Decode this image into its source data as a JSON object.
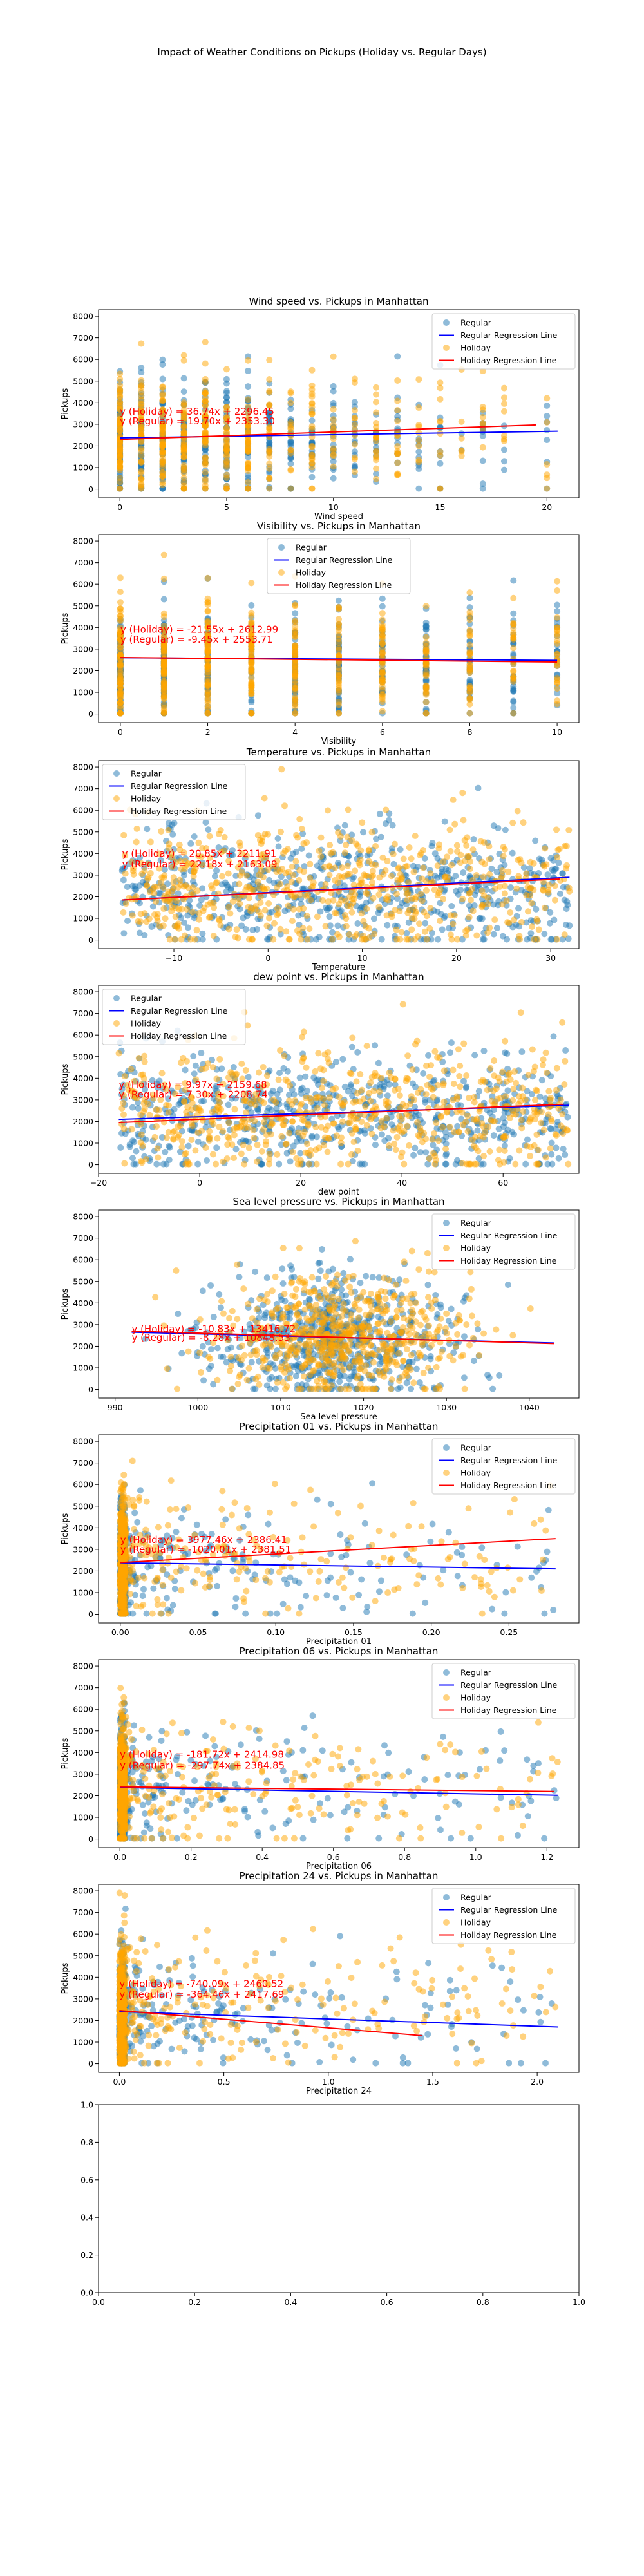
{
  "figure": {
    "suptitle": "Impact of Weather Conditions on Pickups (Holiday vs. Regular Days)",
    "colors": {
      "regular": "#1f77b4",
      "holiday": "#ffa500",
      "regular_line": "#0000ff",
      "holiday_line": "#ff0000",
      "equation": "#ff0000"
    }
  },
  "chart_data": [
    {
      "type": "scatter",
      "title": "Wind speed vs. Pickups in Manhattan",
      "xlabel": "Wind speed",
      "ylabel": "Pickups",
      "xlim": [
        -1,
        21.5
      ],
      "ylim": [
        -400,
        8300
      ],
      "xticks": [
        0,
        5,
        10,
        15,
        20
      ],
      "yticks": [
        0,
        1000,
        2000,
        3000,
        4000,
        5000,
        6000,
        7000,
        8000
      ],
      "legend": "upper right",
      "legend_entries": [
        "Regular",
        "Regular Regression Line",
        "Holiday",
        "Holiday Regression Line"
      ],
      "point_pattern": "discrete",
      "x_discrete": [
        0,
        1,
        2,
        3,
        4,
        5,
        6,
        7,
        8,
        9,
        10,
        11,
        12,
        13,
        14,
        15,
        16,
        17,
        18,
        20
      ],
      "x_range": [
        0,
        20.5
      ],
      "regular_line": {
        "x": [
          0,
          20.5
        ],
        "y": [
          2370,
          2680
        ]
      },
      "holiday_line": {
        "x": [
          0,
          19.5
        ],
        "y": [
          2300,
          2970
        ]
      },
      "equations": [
        "y (Holiday) = 36.74x + 2296.45",
        "y (Regular) = 19.70x + 2353.30"
      ],
      "eq_x": 0,
      "eq_y": [
        3450,
        3000
      ]
    },
    {
      "type": "scatter",
      "title": "Visibility vs. Pickups in Manhattan",
      "xlabel": "Visibility",
      "ylabel": "Pickups",
      "xlim": [
        -0.5,
        10.5
      ],
      "ylim": [
        -400,
        8300
      ],
      "xticks": [
        0,
        2,
        4,
        6,
        8,
        10
      ],
      "yticks": [
        0,
        1000,
        2000,
        3000,
        4000,
        5000,
        6000,
        7000,
        8000
      ],
      "legend": "upper center",
      "legend_entries": [
        "Regular",
        "Regular Regression Line",
        "Holiday",
        "Holiday Regression Line"
      ],
      "point_pattern": "discrete",
      "x_discrete": [
        0,
        1,
        2,
        3,
        4,
        5,
        6,
        7,
        8,
        9,
        10
      ],
      "x_range": [
        0,
        10
      ],
      "regular_line": {
        "x": [
          0,
          10
        ],
        "y": [
          2600,
          2480
        ]
      },
      "holiday_line": {
        "x": [
          0,
          10
        ],
        "y": [
          2610,
          2400
        ]
      },
      "equations": [
        "y (Holiday) = -21.55x + 2612.99",
        "y (Regular) = -9.45x + 2553.71"
      ],
      "eq_x": 0,
      "eq_y": [
        3750,
        3300
      ]
    },
    {
      "type": "scatter",
      "title": "Temperature vs. Pickups in Manhattan",
      "xlabel": "Temperature",
      "ylabel": "Pickups",
      "xlim": [
        -18,
        33
      ],
      "ylim": [
        -400,
        8300
      ],
      "xticks": [
        -10,
        0,
        10,
        20,
        30
      ],
      "yticks": [
        0,
        1000,
        2000,
        3000,
        4000,
        5000,
        6000,
        7000,
        8000
      ],
      "legend": "upper left",
      "legend_entries": [
        "Regular",
        "Regular Regression Line",
        "Holiday",
        "Holiday Regression Line"
      ],
      "point_pattern": "continuous",
      "x_range": [
        -15.5,
        32
      ],
      "regular_line": {
        "x": [
          -15.5,
          32
        ],
        "y": [
          1850,
          2900
        ]
      },
      "holiday_line": {
        "x": [
          -15.5,
          31
        ],
        "y": [
          1850,
          2820
        ]
      },
      "equations": [
        "y (Holiday) = 20.85x + 2211.91",
        "y (Regular) = 22.18x + 2163.09"
      ],
      "eq_x": -15.5,
      "eq_y": [
        3850,
        3350
      ]
    },
    {
      "type": "scatter",
      "title": "dew point vs. Pickups in Manhattan",
      "xlabel": "dew point",
      "ylabel": "Pickups",
      "xlim": [
        -20,
        75
      ],
      "ylim": [
        -400,
        8300
      ],
      "xticks": [
        -20,
        0,
        20,
        40,
        60
      ],
      "yticks": [
        0,
        1000,
        2000,
        3000,
        4000,
        5000,
        6000,
        7000,
        8000
      ],
      "legend": "upper left",
      "legend_entries": [
        "Regular",
        "Regular Regression Line",
        "Holiday",
        "Holiday Regression Line"
      ],
      "point_pattern": "continuous",
      "x_range": [
        -16,
        73
      ],
      "regular_line": {
        "x": [
          -16,
          73
        ],
        "y": [
          2100,
          2750
        ]
      },
      "holiday_line": {
        "x": [
          -16,
          72
        ],
        "y": [
          1950,
          2800
        ]
      },
      "equations": [
        "y (Holiday) = 9.97x + 2159.68",
        "y (Regular) = 7.30x + 2208.74"
      ],
      "eq_x": -16,
      "eq_y": [
        3550,
        3100
      ]
    },
    {
      "type": "scatter",
      "title": "Sea level pressure vs. Pickups in Manhattan",
      "xlabel": "Sea level pressure",
      "ylabel": "Pickups",
      "xlim": [
        988,
        1046
      ],
      "ylim": [
        -400,
        8300
      ],
      "xticks": [
        990,
        1000,
        1010,
        1020,
        1030,
        1040
      ],
      "yticks": [
        0,
        1000,
        2000,
        3000,
        4000,
        5000,
        6000,
        7000,
        8000
      ],
      "legend": "upper right",
      "legend_entries": [
        "Regular",
        "Regular Regression Line",
        "Holiday",
        "Holiday Regression Line"
      ],
      "point_pattern": "cluster",
      "x_range": [
        992,
        1043
      ],
      "cluster_center": 1017,
      "regular_line": {
        "x": [
          992,
          1043
        ],
        "y": [
          2650,
          2150
        ]
      },
      "holiday_line": {
        "x": [
          992,
          1043
        ],
        "y": [
          2700,
          2120
        ]
      },
      "equations": [
        "y (Holiday) = -10.83x + 13416.72",
        "y (Regular) = -8.28x + 10848.53"
      ],
      "eq_x": 992,
      "eq_y": [
        2650,
        2250
      ]
    },
    {
      "type": "scatter",
      "title": "Precipitation 01 vs. Pickups in Manhattan",
      "xlabel": "Precipitation 01",
      "ylabel": "Pickups",
      "xlim": [
        -0.014,
        0.295
      ],
      "ylim": [
        -400,
        8300
      ],
      "xticks": [
        0.0,
        0.05,
        0.1,
        0.15,
        0.2,
        0.25
      ],
      "xtick_labels": [
        "0.00",
        "0.05",
        "0.10",
        "0.15",
        "0.20",
        "0.25"
      ],
      "yticks": [
        0,
        1000,
        2000,
        3000,
        4000,
        5000,
        6000,
        7000,
        8000
      ],
      "legend": "upper right",
      "legend_entries": [
        "Regular",
        "Regular Regression Line",
        "Holiday",
        "Holiday Regression Line"
      ],
      "point_pattern": "skew",
      "x_range": [
        0,
        0.28
      ],
      "regular_line": {
        "x": [
          0,
          0.28
        ],
        "y": [
          2380,
          2100
        ]
      },
      "holiday_line": {
        "x": [
          0,
          0.28
        ],
        "y": [
          2390,
          3500
        ]
      },
      "equations": [
        "y (Holiday) = 3977.46x + 2386.41",
        "y (Regular) = -1020.01x + 2381.51"
      ],
      "eq_x": 0,
      "eq_y": [
        3300,
        2850
      ]
    },
    {
      "type": "scatter",
      "title": "Precipitation 06 vs. Pickups in Manhattan",
      "xlabel": "Precipitation 06",
      "ylabel": "Pickups",
      "xlim": [
        -0.06,
        1.29
      ],
      "ylim": [
        -400,
        8300
      ],
      "xticks": [
        0.0,
        0.2,
        0.4,
        0.6,
        0.8,
        1.0,
        1.2
      ],
      "xtick_labels": [
        "0.0",
        "0.2",
        "0.4",
        "0.6",
        "0.8",
        "1.0",
        "1.2"
      ],
      "yticks": [
        0,
        1000,
        2000,
        3000,
        4000,
        5000,
        6000,
        7000,
        8000
      ],
      "legend": "upper right",
      "legend_entries": [
        "Regular",
        "Regular Regression Line",
        "Holiday",
        "Holiday Regression Line"
      ],
      "point_pattern": "skew",
      "x_range": [
        0,
        1.23
      ],
      "regular_line": {
        "x": [
          0,
          1.23
        ],
        "y": [
          2380,
          2020
        ]
      },
      "holiday_line": {
        "x": [
          0,
          1.22
        ],
        "y": [
          2410,
          2200
        ]
      },
      "equations": [
        "y (Holiday) = -181.72x + 2414.98",
        "y (Regular) = -297.74x + 2384.85"
      ],
      "eq_x": 0,
      "eq_y": [
        3750,
        3250
      ]
    },
    {
      "type": "scatter",
      "title": "Precipitation 24 vs. Pickups in Manhattan",
      "xlabel": "Precipitation 24",
      "ylabel": "Pickups",
      "xlim": [
        -0.1,
        2.2
      ],
      "ylim": [
        -400,
        8300
      ],
      "xticks": [
        0.0,
        0.5,
        1.0,
        1.5,
        2.0
      ],
      "xtick_labels": [
        "0.0",
        "0.5",
        "1.0",
        "1.5",
        "2.0"
      ],
      "yticks": [
        0,
        1000,
        2000,
        3000,
        4000,
        5000,
        6000,
        7000,
        8000
      ],
      "legend": "upper right",
      "legend_entries": [
        "Regular",
        "Regular Regression Line",
        "Holiday",
        "Holiday Regression Line"
      ],
      "point_pattern": "skew",
      "x_range": [
        0,
        2.1
      ],
      "regular_line": {
        "x": [
          0,
          2.1
        ],
        "y": [
          2410,
          1700
        ]
      },
      "holiday_line": {
        "x": [
          0,
          1.45
        ],
        "y": [
          2460,
          1300
        ]
      },
      "equations": [
        "y (Holiday) = -740.09x + 2460.52",
        "y (Regular) = -364.46x + 2417.69"
      ],
      "eq_x": 0,
      "eq_y": [
        3550,
        3050
      ]
    },
    {
      "type": "scatter",
      "title": "",
      "xlabel": "",
      "ylabel": "",
      "xlim": [
        0,
        1
      ],
      "ylim": [
        0,
        1
      ],
      "xticks": [
        0,
        0.2,
        0.4,
        0.6,
        0.8,
        1.0
      ],
      "xtick_labels": [
        "0.0",
        "0.2",
        "0.4",
        "0.6",
        "0.8",
        "1.0"
      ],
      "yticks": [
        0,
        0.2,
        0.4,
        0.6,
        0.8,
        1.0
      ],
      "ytick_labels": [
        "0.0",
        "0.2",
        "0.4",
        "0.6",
        "0.8",
        "1.0"
      ],
      "empty": true
    }
  ]
}
